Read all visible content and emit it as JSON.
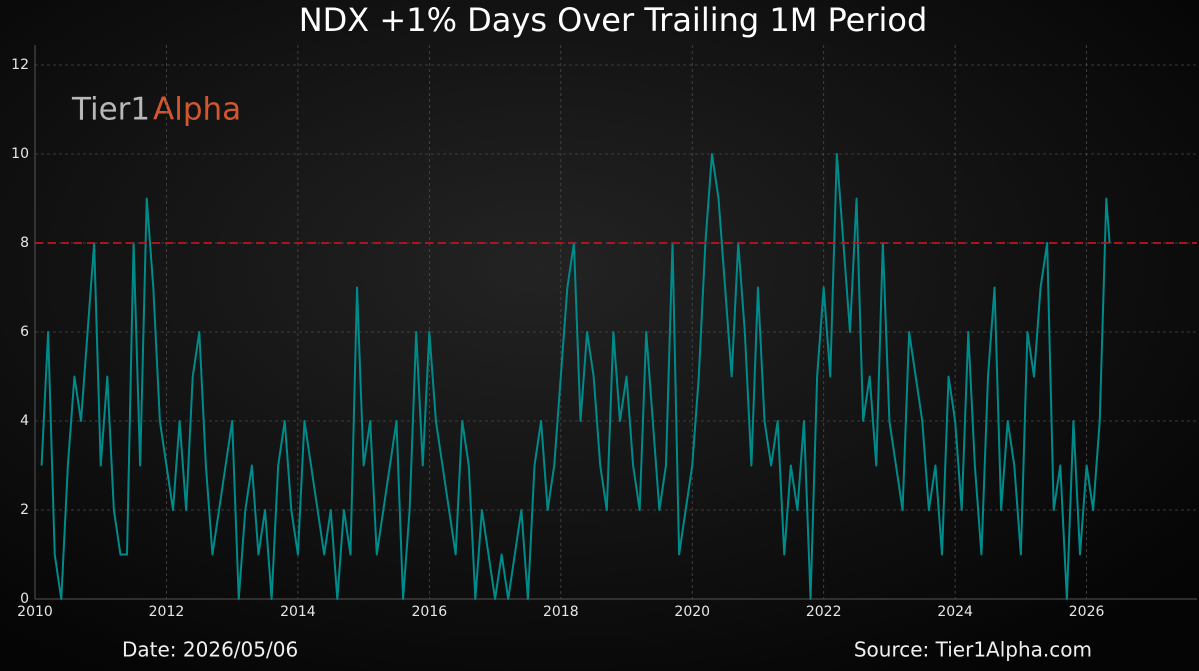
{
  "chart_data": {
    "type": "line",
    "title": "NDX +1% Days Over Trailing 1M Period",
    "logo": [
      "Tier1",
      "Alpha"
    ],
    "date_label": "Date: 2026/05/06",
    "source_label": "Source: Tier1Alpha.com",
    "x": [
      2010.1,
      2010.2,
      2010.3,
      2010.4,
      2010.5,
      2010.6,
      2010.7,
      2010.8,
      2010.9,
      2011.0,
      2011.1,
      2011.2,
      2011.3,
      2011.4,
      2011.5,
      2011.6,
      2011.7,
      2011.8,
      2011.9,
      2012.0,
      2012.1,
      2012.2,
      2012.3,
      2012.4,
      2012.5,
      2012.6,
      2012.7,
      2012.8,
      2012.9,
      2013.0,
      2013.1,
      2013.2,
      2013.3,
      2013.4,
      2013.5,
      2013.6,
      2013.7,
      2013.8,
      2013.9,
      2014.0,
      2014.1,
      2014.2,
      2014.3,
      2014.4,
      2014.5,
      2014.6,
      2014.7,
      2014.8,
      2014.9,
      2015.0,
      2015.1,
      2015.2,
      2015.3,
      2015.4,
      2015.5,
      2015.6,
      2015.7,
      2015.8,
      2015.9,
      2016.0,
      2016.1,
      2016.2,
      2016.3,
      2016.4,
      2016.5,
      2016.6,
      2016.7,
      2016.8,
      2016.9,
      2017.0,
      2017.1,
      2017.2,
      2017.3,
      2017.4,
      2017.5,
      2017.6,
      2017.7,
      2017.8,
      2017.9,
      2018.0,
      2018.1,
      2018.2,
      2018.3,
      2018.4,
      2018.5,
      2018.6,
      2018.7,
      2018.8,
      2018.9,
      2019.0,
      2019.1,
      2019.2,
      2019.3,
      2019.4,
      2019.5,
      2019.6,
      2019.7,
      2019.8,
      2019.9,
      2020.0,
      2020.1,
      2020.2,
      2020.3,
      2020.4,
      2020.5,
      2020.6,
      2020.7,
      2020.8,
      2020.9,
      2021.0,
      2021.1,
      2021.2,
      2021.3,
      2021.4,
      2021.5,
      2021.6,
      2021.7,
      2021.8,
      2021.9,
      2022.0,
      2022.1,
      2022.2,
      2022.3,
      2022.4,
      2022.5,
      2022.6,
      2022.7,
      2022.8,
      2022.9,
      2023.0,
      2023.1,
      2023.2,
      2023.3,
      2023.4,
      2023.5,
      2023.6,
      2023.7,
      2023.8,
      2023.9,
      2024.0,
      2024.1,
      2024.2,
      2024.3,
      2024.4,
      2024.5,
      2024.6,
      2024.7,
      2024.8,
      2024.9,
      2025.0,
      2025.1,
      2025.2,
      2025.3,
      2025.4,
      2025.5,
      2025.6,
      2025.7,
      2025.8,
      2025.9,
      2026.0,
      2026.1,
      2026.2,
      2026.3,
      2026.35
    ],
    "series": [
      {
        "name": "NDX +1% Days",
        "color": "#008b8b",
        "values": [
          3,
          6,
          1,
          0,
          3,
          5,
          4,
          6,
          8,
          3,
          5,
          2,
          1,
          1,
          8,
          3,
          9,
          7,
          4,
          3,
          2,
          4,
          2,
          5,
          6,
          3,
          1,
          2,
          3,
          4,
          0,
          2,
          3,
          1,
          2,
          0,
          3,
          4,
          2,
          1,
          4,
          3,
          2,
          1,
          2,
          0,
          2,
          1,
          7,
          3,
          4,
          1,
          2,
          3,
          4,
          0,
          2,
          6,
          3,
          6,
          4,
          3,
          2,
          1,
          4,
          3,
          0,
          2,
          1,
          0,
          1,
          0,
          1,
          2,
          0,
          3,
          4,
          2,
          3,
          5,
          7,
          8,
          4,
          6,
          5,
          3,
          2,
          6,
          4,
          5,
          3,
          2,
          6,
          4,
          2,
          3,
          8,
          1,
          2,
          3,
          5,
          8,
          10,
          9,
          7,
          5,
          8,
          6,
          3,
          7,
          4,
          3,
          4,
          1,
          3,
          2,
          4,
          0,
          5,
          7,
          5,
          10,
          8,
          6,
          9,
          4,
          5,
          3,
          8,
          4,
          3,
          2,
          6,
          5,
          4,
          2,
          3,
          1,
          5,
          4,
          2,
          6,
          3,
          1,
          5,
          7,
          2,
          4,
          3,
          1,
          6,
          5,
          7,
          8,
          2,
          3,
          0,
          4,
          1,
          3,
          2,
          4,
          9,
          8
        ]
      }
    ],
    "reference_line": {
      "value": 8,
      "color": "#c0141e"
    },
    "xlim": [
      2010,
      2027.68
    ],
    "xticks": [
      2010,
      2012,
      2014,
      2016,
      2018,
      2020,
      2022,
      2024,
      2026
    ],
    "ylim": [
      0,
      12.45
    ],
    "yticks": [
      0,
      2,
      4,
      6,
      8,
      10,
      12
    ],
    "grid": true
  }
}
